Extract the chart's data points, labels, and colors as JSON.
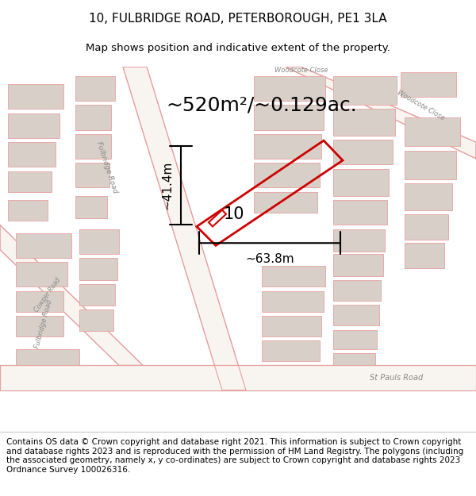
{
  "title": "10, FULBRIDGE ROAD, PETERBOROUGH, PE1 3LA",
  "subtitle": "Map shows position and indicative extent of the property.",
  "area_text": "~520m²/~0.129ac.",
  "width_label": "~63.8m",
  "height_label": "~41.4m",
  "property_label": "10",
  "footer_text": "Contains OS data © Crown copyright and database right 2021. This information is subject to Crown copyright and database rights 2023 and is reproduced with the permission of HM Land Registry. The polygons (including the associated geometry, namely x, y co-ordinates) are subject to Crown copyright and database rights 2023 Ordnance Survey 100026316.",
  "bg_color": "#f0eeea",
  "map_bg": "#f5f3ef",
  "road_color": "#e8a0a0",
  "road_fill": "#f5f3ef",
  "building_color": "#d8d0c8",
  "property_outline_color": "#cc0000",
  "annotation_color": "#222222",
  "footer_bg": "#ffffff",
  "title_fontsize": 11,
  "subtitle_fontsize": 9.5,
  "area_fontsize": 18,
  "label_fontsize": 11,
  "footer_fontsize": 7.5
}
